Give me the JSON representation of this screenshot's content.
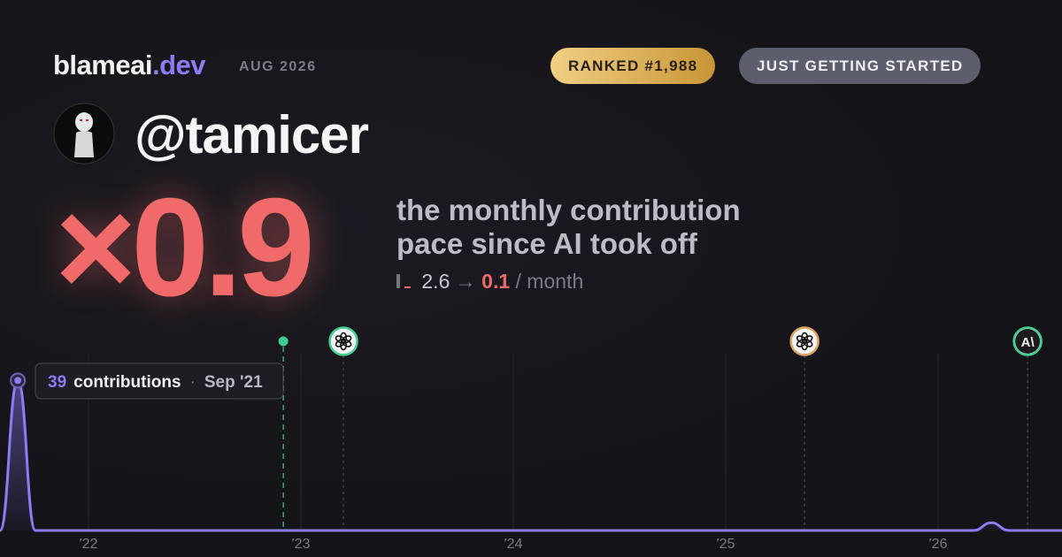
{
  "header": {
    "brand": "blameai",
    "brand_tld": ".dev",
    "date": "AUG 2026",
    "rank_badge": "RANKED #1,988",
    "status_badge": "JUST GETTING STARTED"
  },
  "profile": {
    "handle": "@tamicer"
  },
  "headline": {
    "multiplier": "×0.9",
    "caption_line1": "the monthly contribution",
    "caption_line2": "pace since AI took off",
    "before": "2.6",
    "arrow": "→",
    "after": "0.1",
    "unit": "/ month"
  },
  "chart_data": {
    "type": "line",
    "color": "#8b7cf6",
    "x": [
      2021.583,
      2021.667,
      2021.75,
      2026.167,
      2026.25,
      2026.333,
      2026.583
    ],
    "values": [
      0,
      39,
      0,
      0,
      2,
      0,
      0
    ],
    "xlim": [
      2021.583,
      2026.583
    ],
    "ylim": [
      0,
      40
    ],
    "xticks": [
      {
        "value": 2022,
        "label": "'22"
      },
      {
        "value": 2023,
        "label": "'23"
      },
      {
        "value": 2024,
        "label": "'24"
      },
      {
        "value": 2025,
        "label": "'25"
      },
      {
        "value": 2026,
        "label": "'26"
      }
    ],
    "grid": true,
    "tooltip": {
      "label": "contributions",
      "separator": "·",
      "date": "Sep '21"
    },
    "markers": [
      {
        "x": 2022.917,
        "color": "#3ecf8e",
        "style": "dot"
      },
      {
        "x": 2023.2,
        "color": "#3ecf8e",
        "style": "logo"
      },
      {
        "x": 2025.371,
        "color": "#e0a060",
        "style": "logo"
      },
      {
        "x": 2026.421,
        "color": "#3ecf8e",
        "style": "text",
        "icon_text": "A\\"
      }
    ]
  }
}
